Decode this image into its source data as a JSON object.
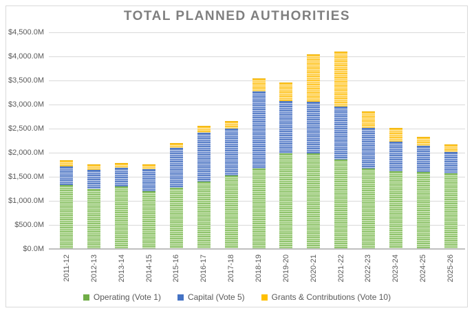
{
  "title": "TOTAL PLANNED AUTHORITIES",
  "chart_data": {
    "type": "bar",
    "stacked": true,
    "title": "TOTAL PLANNED AUTHORITIES",
    "xlabel": "",
    "ylabel": "",
    "ylim": [
      0,
      4500
    ],
    "ytick_interval": 500,
    "ytick_labels": [
      "$0.0M",
      "$500.0M",
      "$1,000.0M",
      "$1,500.0M",
      "$2,000.0M",
      "$2,500.0M",
      "$3,000.0M",
      "$3,500.0M",
      "$4,000.0M",
      "$4,500.0M"
    ],
    "grid": true,
    "legend_position": "bottom",
    "units": "millions of dollars",
    "categories": [
      "2011-12",
      "2012-13",
      "2013-14",
      "2014-15",
      "2015-16",
      "2016-17",
      "2017-18",
      "2018-19",
      "2019-20",
      "2020-21",
      "2021-22",
      "2022-23",
      "2023-24",
      "2024-25",
      "2025-26"
    ],
    "series": [
      {
        "key": "operating",
        "name": "Operating (Vote 1)",
        "color": "#70AD47",
        "values": [
          1330,
          1250,
          1300,
          1200,
          1275,
          1400,
          1530,
          1665,
          1985,
          1980,
          1860,
          1670,
          1610,
          1600,
          1565
        ]
      },
      {
        "key": "capital",
        "name": "Capital (Vote 5)",
        "color": "#4472C4",
        "values": [
          385,
          395,
          385,
          455,
          825,
          1015,
          970,
          1600,
          1085,
          1080,
          1095,
          845,
          620,
          545,
          450
        ]
      },
      {
        "key": "grants",
        "name": "Grants & Contributions (Vote 10)",
        "color": "#FFC000",
        "values": [
          130,
          115,
          100,
          100,
          100,
          145,
          155,
          285,
          385,
          990,
          1150,
          345,
          290,
          180,
          155
        ]
      }
    ]
  }
}
